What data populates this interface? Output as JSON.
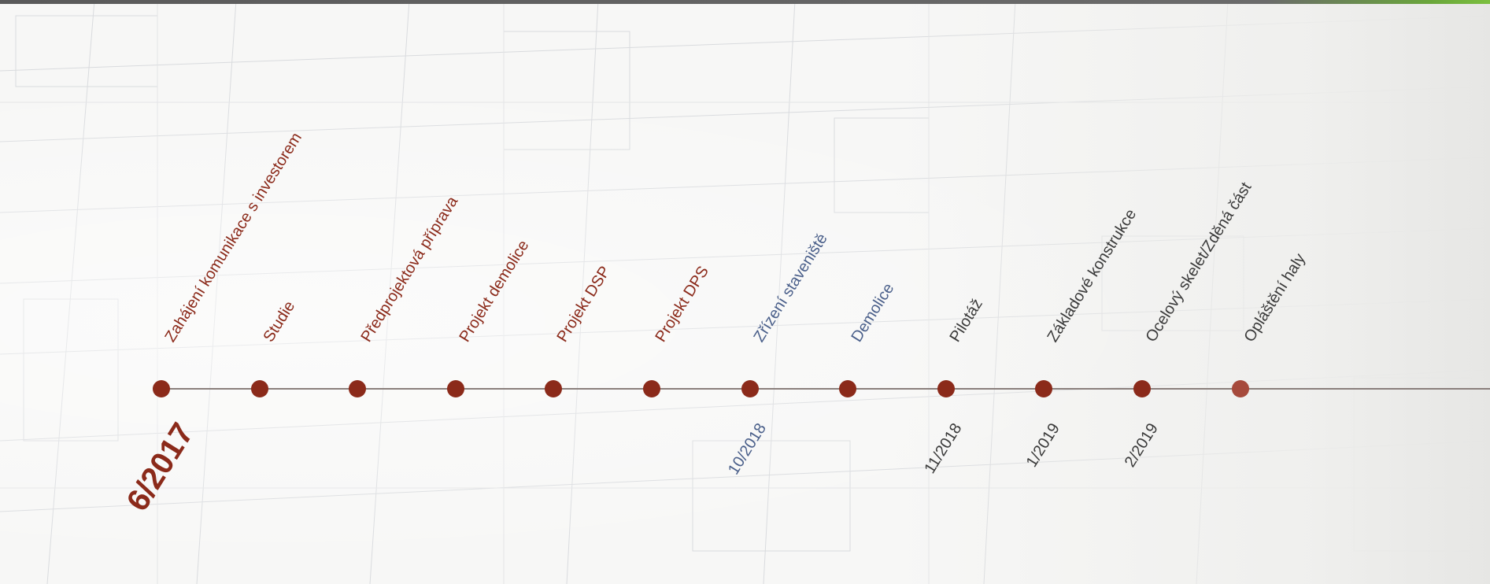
{
  "timeline": {
    "start_date": "6/2017",
    "milestones": [
      {
        "label": "Zahájení komunikace s investorem",
        "tone": "red"
      },
      {
        "label": "Studie",
        "tone": "red"
      },
      {
        "label": "Předprojektová příprava",
        "tone": "red"
      },
      {
        "label": "Projekt demolice",
        "tone": "red"
      },
      {
        "label": "Projekt DSP",
        "tone": "red"
      },
      {
        "label": "Projekt DPS",
        "tone": "red"
      },
      {
        "label": "Zřízení staveniště",
        "tone": "blue",
        "date": "10/2018"
      },
      {
        "label": "Demolice",
        "tone": "blue"
      },
      {
        "label": "Pilotáž",
        "tone": "dark",
        "date": "11/2018"
      },
      {
        "label": "Základové konstrukce",
        "tone": "dark",
        "date": "1/2019"
      },
      {
        "label": "Ocelový skelet/Zděná část",
        "tone": "dark",
        "date": "2/2019"
      },
      {
        "label": "Opláštění haly",
        "tone": "dark"
      }
    ]
  },
  "colors": {
    "dot": "#8b2a1a",
    "done_text": "#8b2a1a",
    "current_text": "#4a5f8a",
    "planned_text": "#3a3a3a",
    "line": "#8a7f7c"
  }
}
